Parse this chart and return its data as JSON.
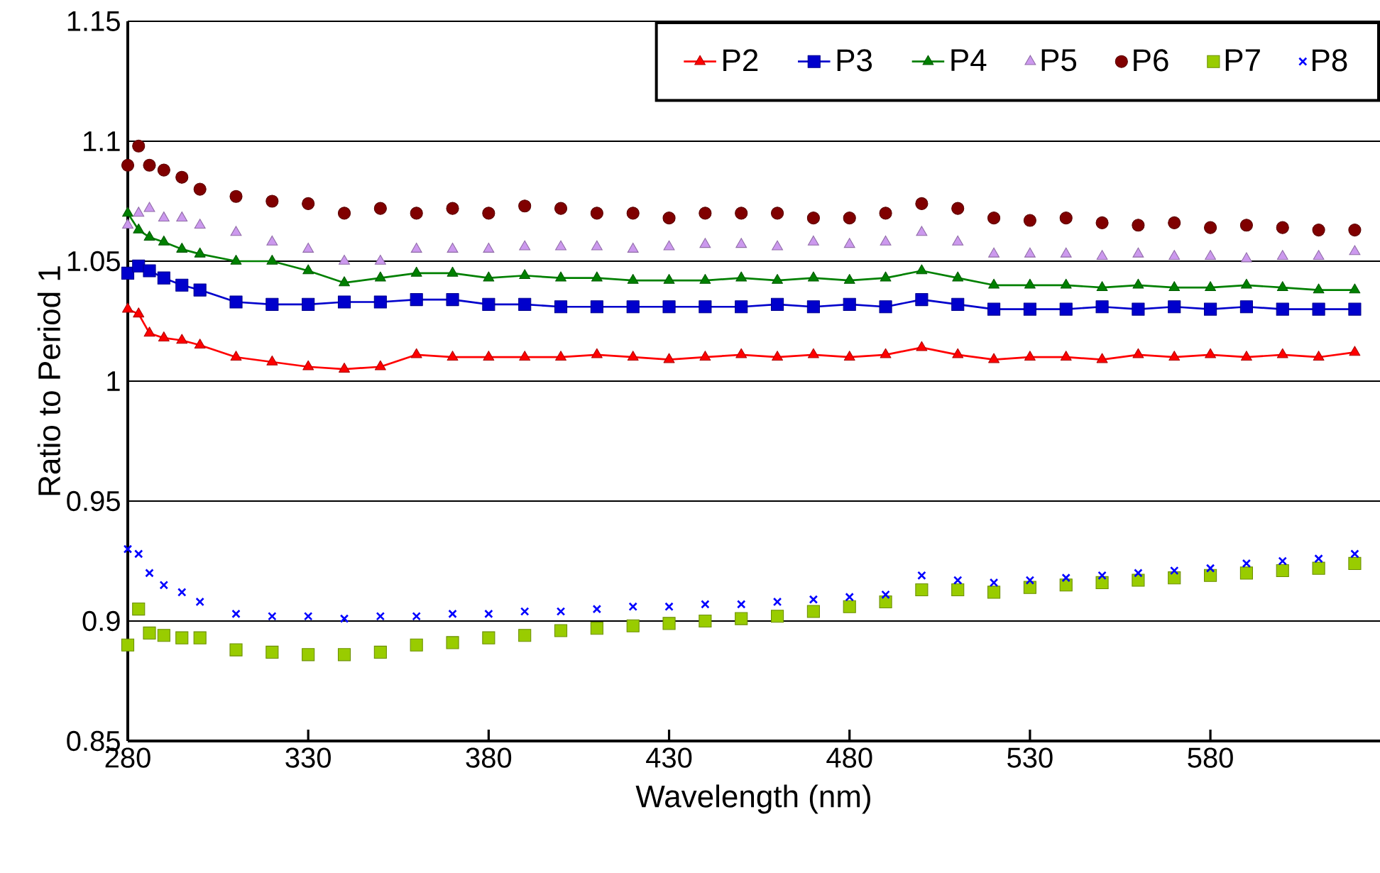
{
  "chart_data": {
    "type": "scatter",
    "xlabel": "Wavelength (nm)",
    "ylabel": "Ratio to Period 1",
    "xlim": [
      280,
      627
    ],
    "xticks": [
      280,
      330,
      380,
      430,
      480,
      530,
      580
    ],
    "ylim": [
      0.85,
      1.15
    ],
    "yticks": [
      {
        "value": 0.85,
        "label": "0.85"
      },
      {
        "value": 0.9,
        "label": "0.9"
      },
      {
        "value": 0.95,
        "label": "0.95"
      },
      {
        "value": 1.0,
        "label": "1"
      },
      {
        "value": 1.05,
        "label": "1.05"
      },
      {
        "value": 1.1,
        "label": "1.1"
      },
      {
        "value": 1.15,
        "label": "1.15"
      }
    ],
    "grid": "y",
    "legend": "top right",
    "x": [
      280,
      283,
      286,
      290,
      295,
      300,
      310,
      320,
      330,
      340,
      350,
      360,
      370,
      380,
      390,
      400,
      410,
      420,
      430,
      440,
      450,
      460,
      470,
      480,
      490,
      500,
      510,
      520,
      530,
      540,
      550,
      560,
      570,
      580,
      590,
      600,
      610,
      620
    ],
    "series": [
      {
        "name": "P2",
        "type": "line",
        "marker": "triangle",
        "color": "#ff0000",
        "values": [
          1.03,
          1.028,
          1.02,
          1.018,
          1.017,
          1.015,
          1.01,
          1.008,
          1.006,
          1.005,
          1.006,
          1.011,
          1.01,
          1.01,
          1.01,
          1.01,
          1.011,
          1.01,
          1.009,
          1.01,
          1.011,
          1.01,
          1.011,
          1.01,
          1.011,
          1.014,
          1.011,
          1.009,
          1.01,
          1.01,
          1.009,
          1.011,
          1.01,
          1.011,
          1.01,
          1.011,
          1.01,
          1.012
        ]
      },
      {
        "name": "P3",
        "type": "line",
        "marker": "square",
        "color": "#0000cc",
        "values": [
          1.045,
          1.048,
          1.046,
          1.043,
          1.04,
          1.038,
          1.033,
          1.032,
          1.032,
          1.033,
          1.033,
          1.034,
          1.034,
          1.032,
          1.032,
          1.031,
          1.031,
          1.031,
          1.031,
          1.031,
          1.031,
          1.032,
          1.031,
          1.032,
          1.031,
          1.034,
          1.032,
          1.03,
          1.03,
          1.03,
          1.031,
          1.03,
          1.031,
          1.03,
          1.031,
          1.03,
          1.03,
          1.03
        ]
      },
      {
        "name": "P4",
        "type": "line",
        "marker": "triangle",
        "color": "#008000",
        "values": [
          1.07,
          1.063,
          1.06,
          1.058,
          1.055,
          1.053,
          1.05,
          1.05,
          1.046,
          1.041,
          1.043,
          1.045,
          1.045,
          1.043,
          1.044,
          1.043,
          1.043,
          1.042,
          1.042,
          1.042,
          1.043,
          1.042,
          1.043,
          1.042,
          1.043,
          1.046,
          1.043,
          1.04,
          1.04,
          1.04,
          1.039,
          1.04,
          1.039,
          1.039,
          1.04,
          1.039,
          1.038,
          1.038
        ]
      },
      {
        "name": "P5",
        "marker": "triangle",
        "color": "#cc99ee",
        "values": [
          1.065,
          1.07,
          1.072,
          1.068,
          1.068,
          1.065,
          1.062,
          1.058,
          1.055,
          1.05,
          1.05,
          1.055,
          1.055,
          1.055,
          1.056,
          1.056,
          1.056,
          1.055,
          1.056,
          1.057,
          1.057,
          1.056,
          1.058,
          1.057,
          1.058,
          1.062,
          1.058,
          1.053,
          1.053,
          1.053,
          1.052,
          1.053,
          1.052,
          1.052,
          1.051,
          1.052,
          1.052,
          1.054
        ]
      },
      {
        "name": "P6",
        "marker": "circle",
        "color": "#800000",
        "values": [
          1.09,
          1.098,
          1.09,
          1.088,
          1.085,
          1.08,
          1.077,
          1.075,
          1.074,
          1.07,
          1.072,
          1.07,
          1.072,
          1.07,
          1.073,
          1.072,
          1.07,
          1.07,
          1.068,
          1.07,
          1.07,
          1.07,
          1.068,
          1.068,
          1.07,
          1.074,
          1.072,
          1.068,
          1.067,
          1.068,
          1.066,
          1.065,
          1.066,
          1.064,
          1.065,
          1.064,
          1.063,
          1.063
        ]
      },
      {
        "name": "P7",
        "marker": "square",
        "color": "#99cc00",
        "values": [
          0.89,
          0.905,
          0.895,
          0.894,
          0.893,
          0.893,
          0.888,
          0.887,
          0.886,
          0.886,
          0.887,
          0.89,
          0.891,
          0.893,
          0.894,
          0.896,
          0.897,
          0.898,
          0.899,
          0.9,
          0.901,
          0.902,
          0.904,
          0.906,
          0.908,
          0.913,
          0.913,
          0.912,
          0.914,
          0.915,
          0.916,
          0.917,
          0.918,
          0.919,
          0.92,
          0.921,
          0.922,
          0.924
        ]
      },
      {
        "name": "P8",
        "marker": "cross",
        "color": "#0000ff",
        "values": [
          0.93,
          0.928,
          0.92,
          0.915,
          0.912,
          0.908,
          0.903,
          0.902,
          0.902,
          0.901,
          0.902,
          0.902,
          0.903,
          0.903,
          0.904,
          0.904,
          0.905,
          0.906,
          0.906,
          0.907,
          0.907,
          0.908,
          0.909,
          0.91,
          0.911,
          0.919,
          0.917,
          0.916,
          0.917,
          0.918,
          0.919,
          0.92,
          0.921,
          0.922,
          0.924,
          0.925,
          0.926,
          0.928
        ]
      }
    ]
  }
}
